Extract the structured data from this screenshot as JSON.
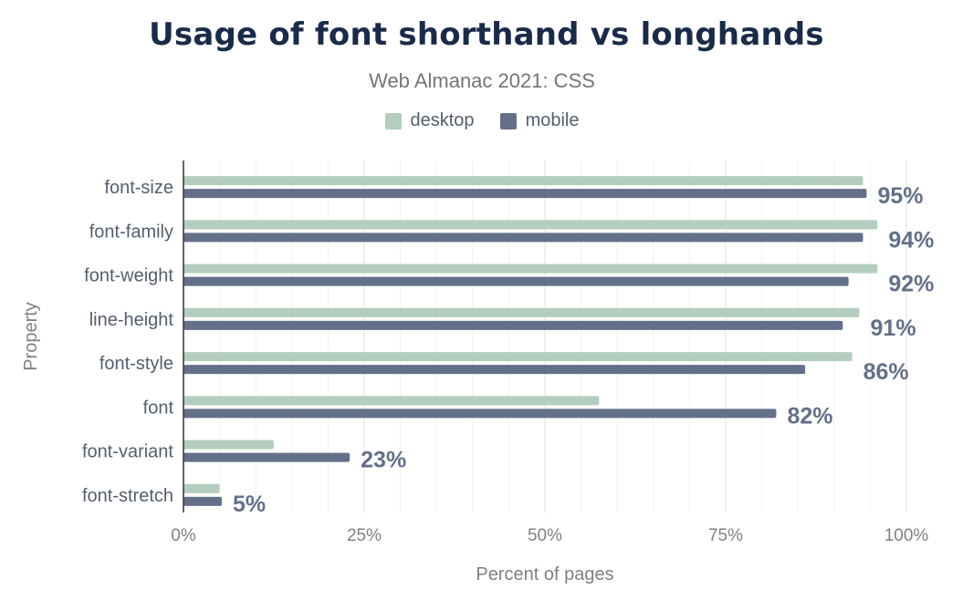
{
  "chart_data": {
    "type": "bar",
    "orientation": "horizontal",
    "title": "Usage of font shorthand vs longhands",
    "subtitle": "Web Almanac 2021: CSS",
    "xlabel": "Percent of pages",
    "ylabel": "Property",
    "xlim": [
      0,
      100
    ],
    "xticks": [
      "0%",
      "25%",
      "50%",
      "75%",
      "100%"
    ],
    "grid": true,
    "legend_position": "top-center",
    "categories": [
      "font-size",
      "font-family",
      "font-weight",
      "line-height",
      "font-style",
      "font",
      "font-variant",
      "font-stretch"
    ],
    "series": [
      {
        "name": "desktop",
        "color": "#b3cdbf",
        "values": [
          94,
          96,
          96,
          93.5,
          92.5,
          57.5,
          12.5,
          5
        ]
      },
      {
        "name": "mobile",
        "color": "#637089",
        "values": [
          94.5,
          94,
          92,
          91.2,
          86,
          82,
          23,
          5.3
        ]
      }
    ],
    "data_labels": [
      "95%",
      "94%",
      "92%",
      "91%",
      "86%",
      "82%",
      "23%",
      "5%"
    ]
  }
}
